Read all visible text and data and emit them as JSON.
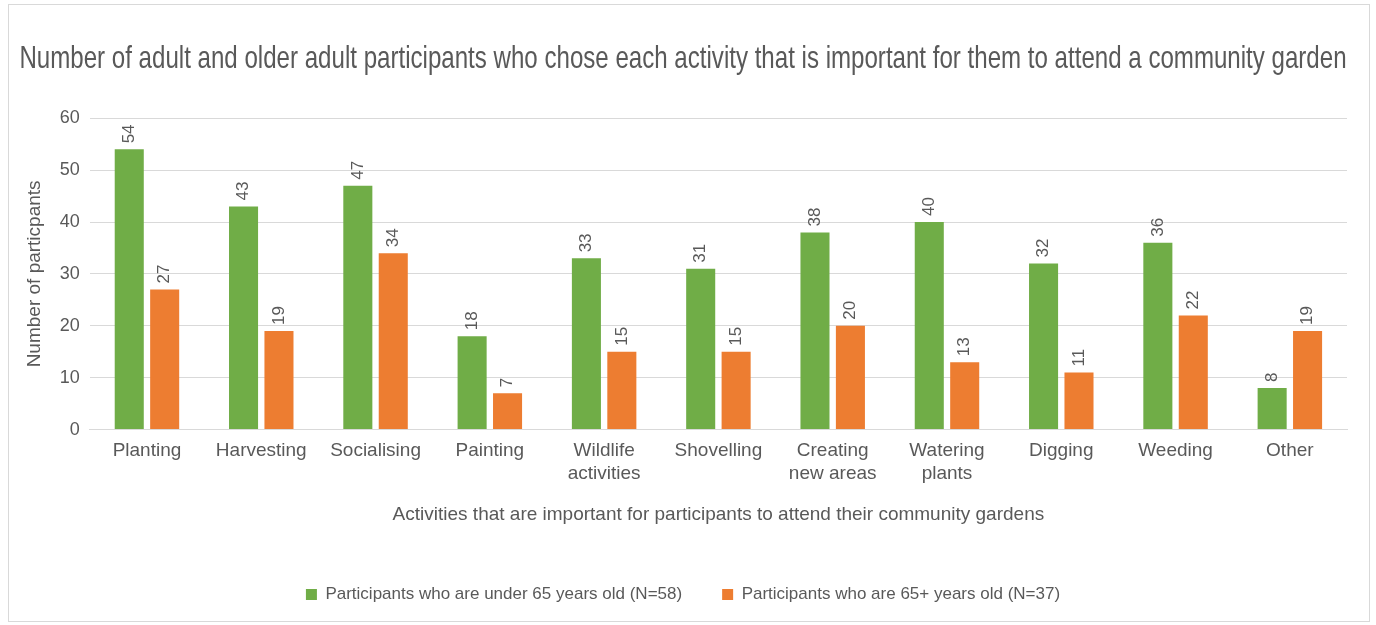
{
  "chart_data": {
    "type": "bar",
    "title": "Number of adult and older adult participants who chose each activity that is important for them to attend a community garden",
    "xlabel": "Activities that are important for participants to attend their community gardens",
    "ylabel": "Number of particpants",
    "categories": [
      "Planting",
      "Harvesting",
      "Socialising",
      "Painting",
      "Wildlife activities",
      "Shovelling",
      "Creating new areas",
      "Watering plants",
      "Digging",
      "Weeding",
      "Other"
    ],
    "series": [
      {
        "name": "Participants who are under 65 years old (N=58)",
        "color": "#70ad47",
        "values": [
          54,
          43,
          47,
          18,
          33,
          31,
          38,
          40,
          32,
          36,
          8
        ]
      },
      {
        "name": "Participants who are 65+ years old (N=37)",
        "color": "#ed7d31",
        "values": [
          27,
          19,
          34,
          7,
          15,
          15,
          20,
          13,
          11,
          22,
          19
        ]
      }
    ],
    "ylim": [
      0,
      60
    ],
    "yticks": [
      0,
      10,
      20,
      30,
      40,
      50,
      60
    ],
    "grid": "y",
    "legend": "bottom",
    "data_labels": true
  }
}
